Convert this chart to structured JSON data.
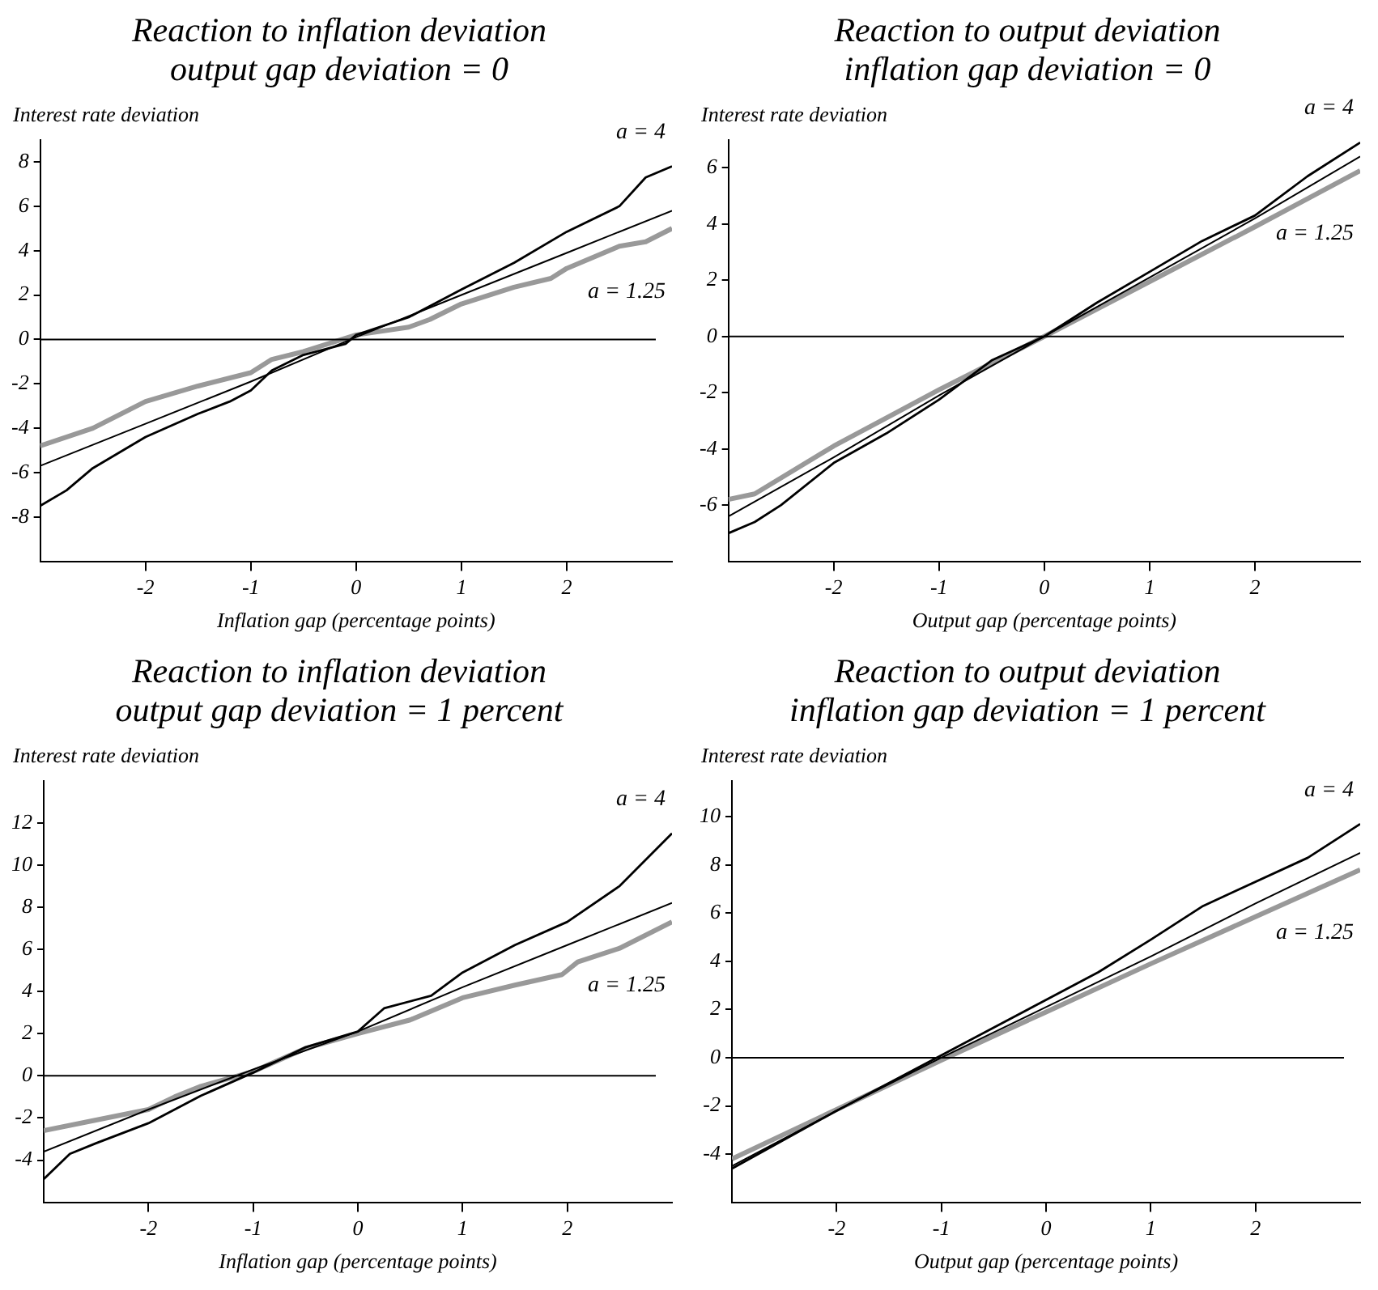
{
  "chart_data": [
    {
      "type": "line",
      "title": "Reaction to inflation deviation\noutput gap deviation = 0",
      "xlabel": "Inflation gap (percentage points)",
      "ylabel": "Interest rate deviation",
      "xlim": [
        -3,
        3
      ],
      "xticks": [
        -2,
        -1,
        0,
        1,
        2
      ],
      "ylim": [
        -10,
        9
      ],
      "yticks": [
        -8,
        -6,
        -4,
        -2,
        0,
        2,
        4,
        6,
        8
      ],
      "grid": false,
      "legend": false,
      "marker": "none",
      "line_style": "solid",
      "ref_lines": [
        {
          "axis": "y",
          "value": 0
        }
      ],
      "series": [
        {
          "name": "a = 4",
          "color": "#000000",
          "x": [
            -3,
            -2.75,
            -2.5,
            -2,
            -1.5,
            -1.2,
            -1,
            -0.8,
            -0.5,
            -0.1,
            0,
            0.5,
            1,
            1.5,
            2,
            2.5,
            2.75,
            3
          ],
          "values": [
            -7.5,
            -6.8,
            -5.8,
            -4.4,
            -3.35,
            -2.8,
            -2.3,
            -1.4,
            -0.7,
            -0.2,
            0.2,
            1.0,
            2.25,
            3.45,
            4.85,
            6.0,
            7.3,
            7.8
          ]
        },
        {
          "color": "#000000",
          "x": [
            -3,
            -2,
            -1,
            0,
            1,
            2,
            3
          ],
          "values": [
            -5.7,
            -3.8,
            -1.9,
            0.1,
            2.0,
            3.9,
            5.8
          ]
        },
        {
          "name": "a = 1.25",
          "color": "#999999",
          "x": [
            -3,
            -2.5,
            -2,
            -1.5,
            -1,
            -0.8,
            -0.5,
            0,
            0.5,
            0.7,
            1,
            1.5,
            1.85,
            2,
            2.5,
            2.75,
            3
          ],
          "values": [
            -4.8,
            -4.0,
            -2.8,
            -2.1,
            -1.5,
            -0.9,
            -0.55,
            0.2,
            0.55,
            0.9,
            1.6,
            2.35,
            2.75,
            3.2,
            4.2,
            4.4,
            5.0
          ]
        }
      ]
    },
    {
      "type": "line",
      "title": "Reaction to output deviation\ninflation gap deviation = 0",
      "xlabel": "Output gap (percentage points)",
      "ylabel": "Interest rate deviation",
      "xlim": [
        -3,
        3
      ],
      "xticks": [
        -2,
        -1,
        0,
        1,
        2
      ],
      "ylim": [
        -8,
        7
      ],
      "yticks": [
        -6,
        -4,
        -2,
        0,
        2,
        4,
        6
      ],
      "grid": false,
      "legend": false,
      "marker": "none",
      "line_style": "solid",
      "ref_lines": [
        {
          "axis": "y",
          "value": 0
        }
      ],
      "series": [
        {
          "name": "a = 4",
          "color": "#000000",
          "x": [
            -3,
            -2.75,
            -2.5,
            -2,
            -1.5,
            -1,
            -0.5,
            0,
            0.5,
            1,
            1.5,
            2,
            2.5,
            3
          ],
          "values": [
            -7.0,
            -6.6,
            -6.0,
            -4.5,
            -3.45,
            -2.25,
            -0.85,
            0,
            1.2,
            2.3,
            3.4,
            4.3,
            5.7,
            6.9
          ]
        },
        {
          "color": "#000000",
          "x": [
            -3,
            -2,
            -1,
            0,
            1,
            2,
            3
          ],
          "values": [
            -6.4,
            -4.3,
            -2.1,
            0,
            2.1,
            4.2,
            6.4
          ]
        },
        {
          "name": "a = 1.25",
          "color": "#999999",
          "x": [
            -3,
            -2.75,
            -2,
            -1,
            0,
            1,
            2,
            3
          ],
          "values": [
            -5.8,
            -5.6,
            -3.9,
            -1.9,
            0,
            1.95,
            3.9,
            5.9
          ]
        }
      ]
    },
    {
      "type": "line",
      "title": "Reaction to inflation deviation\noutput gap deviation = 1 percent",
      "xlabel": "Inflation gap (percentage points)",
      "ylabel": "Interest rate deviation",
      "xlim": [
        -3,
        3
      ],
      "xticks": [
        -2,
        -1,
        0,
        1,
        2
      ],
      "ylim": [
        -6,
        14
      ],
      "yticks": [
        -4,
        -2,
        0,
        2,
        4,
        6,
        8,
        10,
        12
      ],
      "grid": false,
      "legend": false,
      "marker": "none",
      "line_style": "solid",
      "ref_lines": [
        {
          "axis": "y",
          "value": 0
        }
      ],
      "series": [
        {
          "name": "a = 4",
          "color": "#000000",
          "x": [
            -3,
            -2.75,
            -2.5,
            -2,
            -1.5,
            -1,
            -0.5,
            0,
            0.25,
            0.7,
            1,
            1.5,
            2,
            2.5,
            3
          ],
          "values": [
            -4.9,
            -3.7,
            -3.2,
            -2.25,
            -0.95,
            0.15,
            1.35,
            2.1,
            3.2,
            3.8,
            4.9,
            6.2,
            7.3,
            9.0,
            11.5
          ]
        },
        {
          "color": "#000000",
          "x": [
            -3,
            -2,
            -1,
            0,
            1,
            2,
            3
          ],
          "values": [
            -3.6,
            -1.6,
            0.3,
            2.1,
            4.2,
            6.2,
            8.2
          ]
        },
        {
          "name": "a = 1.25",
          "color": "#999999",
          "x": [
            -3,
            -2.5,
            -2,
            -1.75,
            -1.5,
            -1,
            -0.5,
            0,
            0.5,
            1,
            1.5,
            1.95,
            2.1,
            2.5,
            3
          ],
          "values": [
            -2.6,
            -2.1,
            -1.6,
            -1.0,
            -0.5,
            0.2,
            1.3,
            2.0,
            2.65,
            3.7,
            4.3,
            4.8,
            5.4,
            6.05,
            7.3
          ]
        }
      ]
    },
    {
      "type": "line",
      "title": "Reaction to output deviation\ninflation gap deviation = 1 percent",
      "xlabel": "Output gap (percentage points)",
      "ylabel": "Interest rate deviation",
      "xlim": [
        -3,
        3
      ],
      "xticks": [
        -2,
        -1,
        0,
        1,
        2
      ],
      "ylim": [
        -6,
        11.5
      ],
      "yticks": [
        -4,
        -2,
        0,
        2,
        4,
        6,
        8,
        10
      ],
      "grid": false,
      "legend": false,
      "marker": "none",
      "line_style": "solid",
      "ref_lines": [
        {
          "axis": "y",
          "value": 0
        }
      ],
      "series": [
        {
          "name": "a = 4",
          "color": "#000000",
          "x": [
            -3,
            -2,
            -1,
            0,
            0.5,
            1,
            1.5,
            1.8,
            2.5,
            3
          ],
          "values": [
            -4.6,
            -2.2,
            0.1,
            2.4,
            3.55,
            4.9,
            6.3,
            6.9,
            8.3,
            9.7
          ]
        },
        {
          "color": "#000000",
          "x": [
            -3,
            -2,
            -1,
            0,
            1,
            2,
            3
          ],
          "values": [
            -4.5,
            -2.2,
            0,
            2.1,
            4.2,
            6.4,
            8.5
          ]
        },
        {
          "name": "a = 1.25",
          "color": "#999999",
          "x": [
            -3,
            -2,
            -1,
            0,
            1,
            2,
            3
          ],
          "values": [
            -4.2,
            -2.15,
            -0.1,
            1.9,
            3.9,
            5.85,
            7.8
          ]
        }
      ]
    }
  ]
}
